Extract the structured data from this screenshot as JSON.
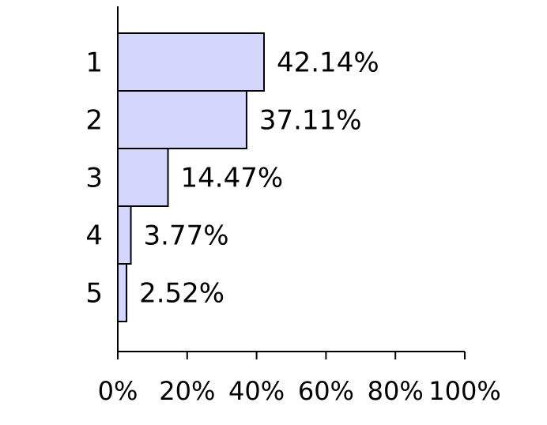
{
  "chart_data": {
    "type": "bar",
    "orientation": "horizontal",
    "categories": [
      "1",
      "2",
      "3",
      "4",
      "5"
    ],
    "values": [
      42.14,
      37.11,
      14.47,
      3.77,
      2.52
    ],
    "value_labels": [
      "42.14%",
      "37.11%",
      "14.47%",
      "3.77%",
      "2.52%"
    ],
    "x_ticks": [
      "0%",
      "20%",
      "40%",
      "60%",
      "80%",
      "100%"
    ],
    "xlim": [
      0,
      100
    ],
    "title": "",
    "xlabel": "",
    "ylabel": "",
    "grid": false,
    "legend": "none",
    "colors": {
      "bar_fill": "#d4d6fb",
      "bar_stroke": "#000000",
      "axis": "#000000",
      "text": "#000000"
    }
  }
}
